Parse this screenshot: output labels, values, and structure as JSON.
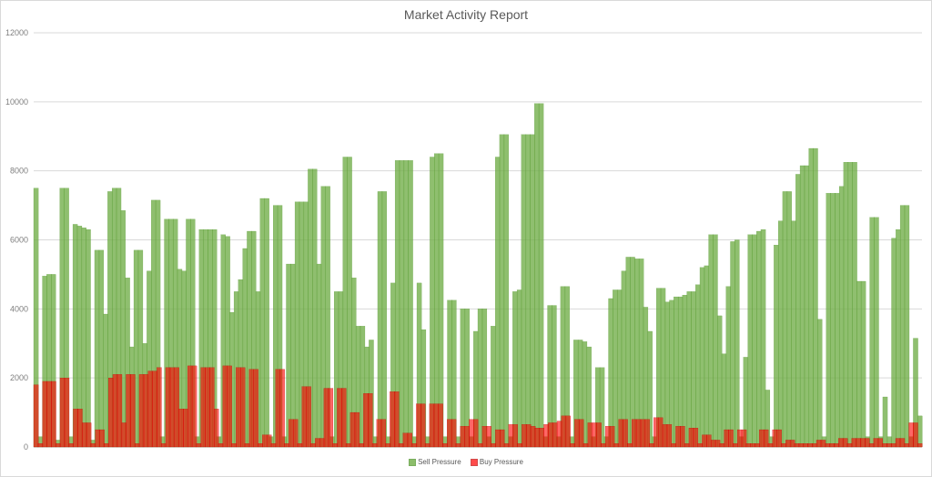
{
  "chart_data": {
    "type": "area",
    "title": "Market Activity Report",
    "xlabel": "",
    "ylabel": "",
    "ylim": [
      0,
      12000
    ],
    "yticks": [
      "0",
      "2000",
      "4000",
      "6000",
      "8000",
      "10000",
      "12000"
    ],
    "grid": true,
    "legend_position": "bottom",
    "series": [
      {
        "name": "Sell Pressure",
        "color": "#70ad47",
        "values": [
          7500,
          300,
          4950,
          5000,
          5000,
          200,
          7500,
          7500,
          300,
          6450,
          6400,
          6350,
          6300,
          200,
          5700,
          5700,
          3850,
          7400,
          7500,
          7500,
          6850,
          4900,
          2900,
          5700,
          5700,
          3000,
          5100,
          7150,
          7150,
          300,
          6600,
          6600,
          6600,
          5150,
          5100,
          6600,
          6600,
          300,
          6300,
          6300,
          6300,
          6300,
          300,
          6150,
          6100,
          3900,
          4500,
          4850,
          5750,
          6250,
          6250,
          4500,
          7200,
          7200,
          300,
          7000,
          7000,
          300,
          5300,
          5300,
          7100,
          7100,
          7100,
          8050,
          8050,
          5300,
          7550,
          7550,
          300,
          4500,
          4500,
          8400,
          8400,
          4900,
          3500,
          3500,
          2900,
          3100,
          300,
          7400,
          7400,
          300,
          4750,
          8300,
          8300,
          8300,
          8300,
          300,
          4750,
          3400,
          300,
          8400,
          8500,
          8500,
          300,
          4250,
          4250,
          300,
          4000,
          4000,
          300,
          3350,
          4000,
          4000,
          300,
          3500,
          8400,
          9050,
          9050,
          300,
          4500,
          4550,
          9050,
          9050,
          9050,
          9950,
          9950,
          300,
          4100,
          4100,
          300,
          4650,
          4650,
          300,
          3100,
          3100,
          3050,
          2900,
          300,
          2300,
          2300,
          300,
          4300,
          4550,
          4550,
          5100,
          5500,
          5500,
          5450,
          5450,
          4050,
          3350,
          300,
          4600,
          4600,
          4200,
          4250,
          4350,
          4350,
          4400,
          4500,
          4500,
          4700,
          5200,
          5250,
          6150,
          6150,
          3800,
          2700,
          4650,
          5950,
          6000,
          300,
          2600,
          6150,
          6150,
          6250,
          6300,
          1650,
          300,
          5850,
          6550,
          7400,
          7400,
          6550,
          7900,
          8150,
          8150,
          8650,
          8650,
          3700,
          300,
          7350,
          7350,
          7350,
          7550,
          8250,
          8250,
          8250,
          4800,
          4800,
          300,
          6650,
          6650,
          300,
          1450,
          300,
          6050,
          6300,
          7000,
          7000,
          300,
          3150,
          900
        ]
      },
      {
        "name": "Buy Pressure",
        "color": "#ff0000",
        "values": [
          1800,
          100,
          1900,
          1900,
          1900,
          100,
          2000,
          2000,
          100,
          1100,
          1100,
          700,
          700,
          100,
          500,
          500,
          100,
          2000,
          2100,
          2100,
          700,
          2100,
          2100,
          100,
          2100,
          2100,
          2200,
          2200,
          2300,
          100,
          2300,
          2300,
          2300,
          1100,
          1100,
          2350,
          2350,
          100,
          2300,
          2300,
          2300,
          1100,
          100,
          2350,
          2350,
          100,
          2300,
          2300,
          100,
          2250,
          2250,
          100,
          350,
          350,
          100,
          2250,
          2250,
          100,
          800,
          800,
          100,
          1750,
          1750,
          100,
          250,
          250,
          1700,
          1700,
          100,
          1700,
          1700,
          100,
          1000,
          1000,
          100,
          1550,
          1550,
          100,
          800,
          800,
          100,
          1600,
          1600,
          100,
          400,
          400,
          100,
          1250,
          1250,
          100,
          1250,
          1250,
          1250,
          100,
          800,
          800,
          100,
          600,
          600,
          800,
          800,
          100,
          600,
          600,
          100,
          500,
          500,
          100,
          650,
          650,
          100,
          650,
          650,
          600,
          550,
          550,
          650,
          700,
          700,
          750,
          900,
          900,
          100,
          800,
          800,
          100,
          700,
          700,
          700,
          100,
          600,
          600,
          100,
          800,
          800,
          100,
          800,
          800,
          800,
          800,
          100,
          850,
          850,
          650,
          650,
          100,
          600,
          600,
          100,
          550,
          550,
          100,
          350,
          350,
          200,
          200,
          100,
          500,
          500,
          100,
          500,
          500,
          100,
          100,
          100,
          500,
          500,
          100,
          500,
          500,
          100,
          200,
          200,
          100,
          100,
          100,
          100,
          100,
          200,
          200,
          100,
          100,
          100,
          250,
          250,
          100,
          250,
          250,
          250,
          250,
          100,
          250,
          250,
          100,
          100,
          100,
          250,
          250,
          100,
          700,
          700,
          100
        ]
      }
    ]
  }
}
